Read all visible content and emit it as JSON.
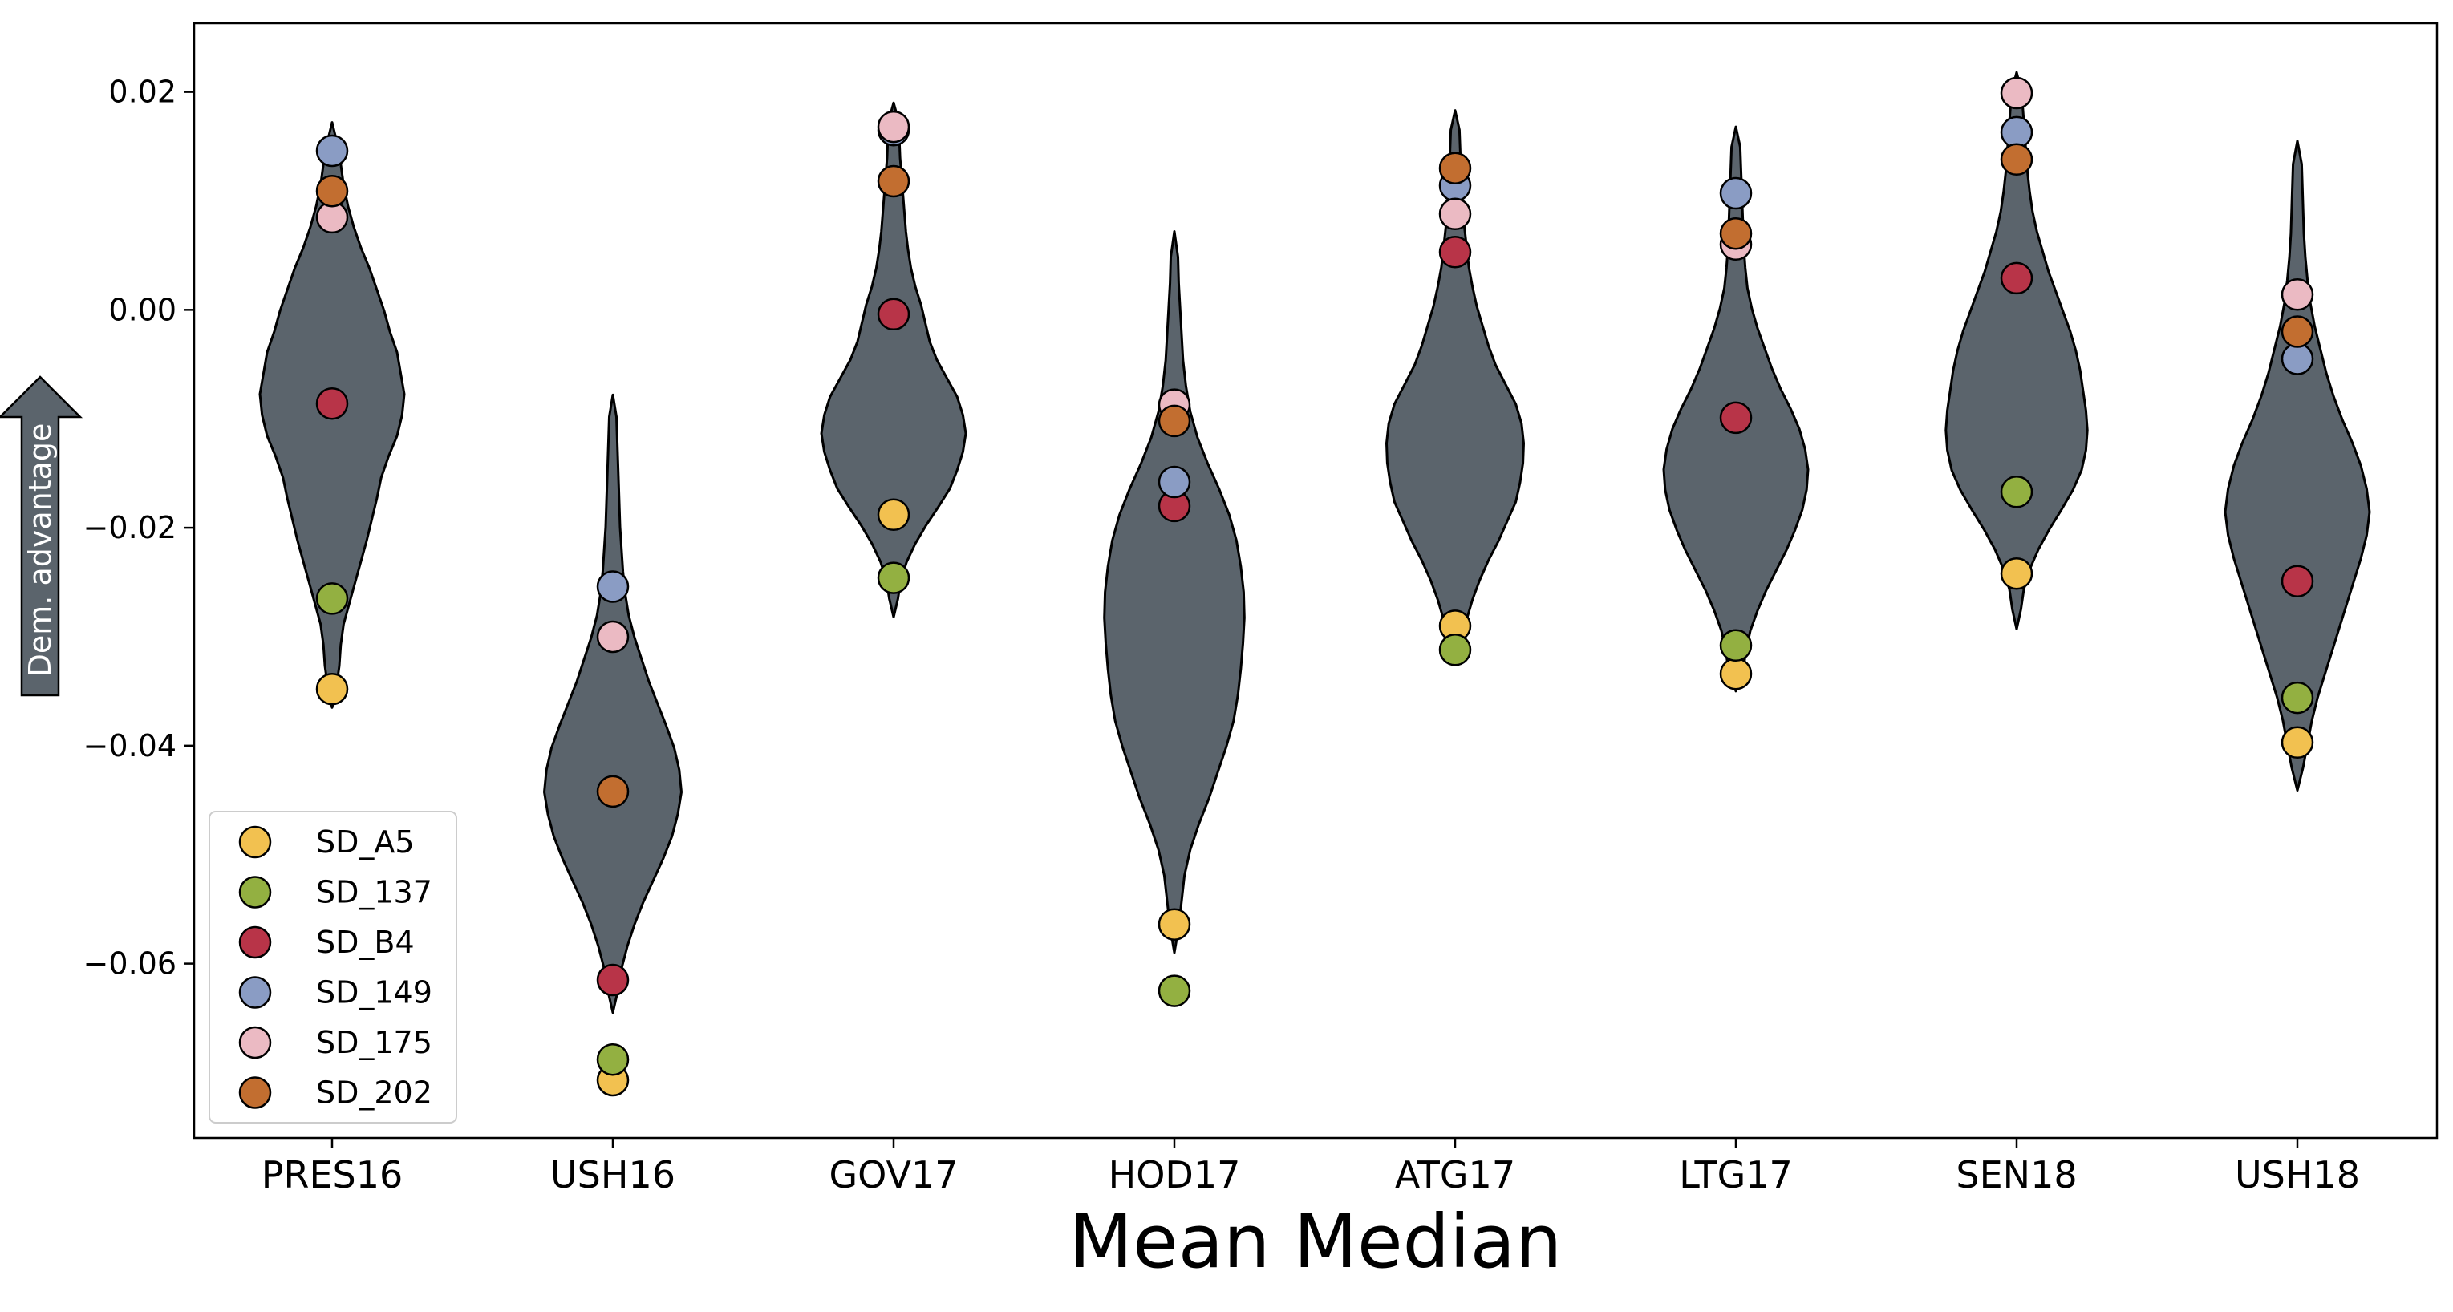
{
  "chart_data": {
    "type": "violin",
    "title": "",
    "xlabel": "Mean Median",
    "ylabel": "Dem. advantage",
    "ylim": [
      -0.076,
      0.0263
    ],
    "yticks": [
      0.02,
      0.0,
      -0.02,
      -0.04,
      -0.06
    ],
    "ytick_labels": [
      "0.02",
      "0.00",
      "−0.02",
      "−0.04",
      "−0.06"
    ],
    "categories": [
      "PRES16",
      "USH16",
      "GOV17",
      "HOD17",
      "ATG17",
      "LTG17",
      "SEN18",
      "USH18"
    ],
    "grid": false,
    "legend_position": "lower-left",
    "colors": {
      "violin_fill": "#5b646c",
      "violin_edge": "#000000",
      "arrow_fill": "#5b646c"
    },
    "violins": [
      {
        "category": "PRES16",
        "min": -0.0365,
        "max": 0.0172,
        "widths": [
          0,
          0.06,
          0.1,
          0.12,
          0.16,
          0.24,
          0.32,
          0.4,
          0.48,
          0.55,
          0.62,
          0.68,
          0.78,
          0.9,
          0.97,
          1.0,
          0.95,
          0.9,
          0.8,
          0.72,
          0.62,
          0.52,
          0.4,
          0.3,
          0.22,
          0.16,
          0.12,
          0.07,
          0
        ]
      },
      {
        "category": "USH16",
        "min": -0.0645,
        "max": -0.0078,
        "widths": [
          0,
          0.07,
          0.12,
          0.2,
          0.3,
          0.42,
          0.56,
          0.7,
          0.82,
          0.9,
          0.95,
          0.92,
          0.85,
          0.74,
          0.62,
          0.5,
          0.4,
          0.3,
          0.22,
          0.17,
          0.14,
          0.12,
          0.1,
          0.09,
          0.08,
          0.07,
          0.06,
          0.05,
          0
        ]
      },
      {
        "category": "GOV17",
        "min": -0.0282,
        "max": 0.019,
        "widths": [
          0,
          0.06,
          0.1,
          0.18,
          0.3,
          0.45,
          0.62,
          0.78,
          0.88,
          0.96,
          1.0,
          0.96,
          0.88,
          0.74,
          0.6,
          0.5,
          0.44,
          0.38,
          0.3,
          0.24,
          0.2,
          0.17,
          0.15,
          0.13,
          0.11,
          0.09,
          0.08,
          0.07,
          0
        ]
      },
      {
        "category": "HOD17",
        "min": -0.059,
        "max": 0.0072,
        "widths": [
          0,
          0.06,
          0.1,
          0.14,
          0.22,
          0.34,
          0.48,
          0.6,
          0.72,
          0.82,
          0.88,
          0.92,
          0.95,
          0.97,
          0.96,
          0.92,
          0.86,
          0.76,
          0.62,
          0.46,
          0.32,
          0.22,
          0.16,
          0.12,
          0.1,
          0.08,
          0.06,
          0.05,
          0
        ]
      },
      {
        "category": "ATG17",
        "min": -0.032,
        "max": 0.0183,
        "widths": [
          0,
          0.1,
          0.16,
          0.24,
          0.34,
          0.46,
          0.6,
          0.72,
          0.84,
          0.9,
          0.94,
          0.95,
          0.92,
          0.84,
          0.7,
          0.56,
          0.46,
          0.38,
          0.3,
          0.24,
          0.19,
          0.16,
          0.13,
          0.11,
          0.09,
          0.08,
          0.07,
          0.06,
          0
        ]
      },
      {
        "category": "LTG17",
        "min": -0.035,
        "max": 0.0168,
        "widths": [
          0,
          0.1,
          0.14,
          0.2,
          0.3,
          0.42,
          0.56,
          0.7,
          0.82,
          0.92,
          0.98,
          1.0,
          0.96,
          0.88,
          0.76,
          0.62,
          0.5,
          0.4,
          0.3,
          0.22,
          0.16,
          0.13,
          0.11,
          0.1,
          0.09,
          0.08,
          0.07,
          0.06,
          0
        ]
      },
      {
        "category": "SEN18",
        "min": -0.0293,
        "max": 0.0218,
        "widths": [
          0,
          0.06,
          0.1,
          0.18,
          0.3,
          0.45,
          0.62,
          0.78,
          0.9,
          0.96,
          0.98,
          0.96,
          0.92,
          0.88,
          0.82,
          0.74,
          0.64,
          0.54,
          0.44,
          0.36,
          0.28,
          0.22,
          0.18,
          0.15,
          0.13,
          0.11,
          0.09,
          0.07,
          0
        ]
      },
      {
        "category": "USH18",
        "min": -0.0441,
        "max": 0.0155,
        "widths": [
          0,
          0.08,
          0.14,
          0.2,
          0.28,
          0.38,
          0.48,
          0.58,
          0.68,
          0.78,
          0.88,
          0.96,
          1.0,
          0.96,
          0.88,
          0.76,
          0.62,
          0.5,
          0.4,
          0.32,
          0.24,
          0.18,
          0.14,
          0.11,
          0.09,
          0.08,
          0.07,
          0.06,
          0
        ]
      }
    ],
    "series": [
      {
        "name": "SD_A5",
        "color": "#f2c150",
        "values": [
          -0.0348,
          -0.0707,
          -0.0188,
          -0.0564,
          -0.029,
          -0.0334,
          -0.0242,
          -0.0397
        ]
      },
      {
        "name": "SD_137",
        "color": "#93b041",
        "values": [
          -0.0265,
          -0.0688,
          -0.0246,
          -0.0625,
          -0.0312,
          -0.0308,
          -0.0167,
          -0.0356
        ]
      },
      {
        "name": "SD_B4",
        "color": "#b83448",
        "values": [
          -0.0086,
          -0.0615,
          -0.0004,
          -0.018,
          0.0053,
          -0.0099,
          0.0029,
          -0.0249
        ]
      },
      {
        "name": "SD_149",
        "color": "#8a9cc4",
        "values": [
          0.0146,
          -0.0254,
          0.0165,
          -0.0158,
          0.0114,
          0.0107,
          0.0163,
          -0.0045
        ]
      },
      {
        "name": "SD_175",
        "color": "#ebbac3",
        "values": [
          0.0085,
          -0.03,
          0.0168,
          -0.0087,
          0.0088,
          0.006,
          0.0199,
          0.0014
        ]
      },
      {
        "name": "SD_202",
        "color": "#c26e30",
        "values": [
          0.0109,
          -0.0442,
          0.0118,
          -0.0102,
          0.013,
          0.007,
          0.0138,
          -0.002
        ]
      }
    ]
  }
}
